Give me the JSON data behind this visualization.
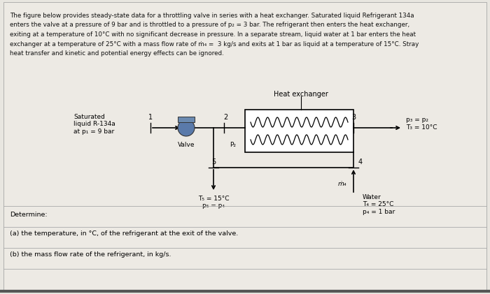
{
  "bg_color": "#e8e6e0",
  "inner_bg": "#f0eeea",
  "text_color": "#1a1a1a",
  "title_text": "The figure below provides steady-state data for a throttling valve in series with a heat exchanger. Saturated liquid Refrigerant 134a\nenters the valve at a pressure of 9 bar and is throttled to a pressure of p₂ = 3 bar. The refrigerant then enters the heat exchanger,\nexiting at a temperature of 10°C with no significant decrease in pressure. In a separate stream, liquid water at 1 bar enters the heat\nexchanger at a temperature of 25°C with a mass flow rate of ṁ₄ =  3 kg/s and exits at 1 bar as liquid at a temperature of 15°C. Stray\nheat transfer and kinetic and potential energy effects can be ignored.",
  "determine_text": "Determine:",
  "question_a": "(a) the temperature, in °C, of the refrigerant at the exit of the valve.",
  "question_b": "(b) the mass flow rate of the refrigerant, in kg/s.",
  "label_saturated": "Saturated\nliquid R-134a\nat p₁ = 9 bar",
  "label_valve": "Valve",
  "label_P2": "P₂",
  "label_heat_exchanger": "Heat exchanger",
  "label_right_exit": "p₃ = p₂\nT₃ = 10°C",
  "label_5": "5",
  "label_4": "4",
  "label_T5": "T₅ = 15°C\np₅ = p₄",
  "label_water": "Water\nT₄ = 25°C\np₄ = 1 bar",
  "label_mdot4": "ṁ₄",
  "node1": "1",
  "node2": "2",
  "node3": "3",
  "valve_color": "#4a6b8a",
  "hx_box_color": "white",
  "coil_color": "#1a1a1a",
  "pipe_lw": 1.2
}
